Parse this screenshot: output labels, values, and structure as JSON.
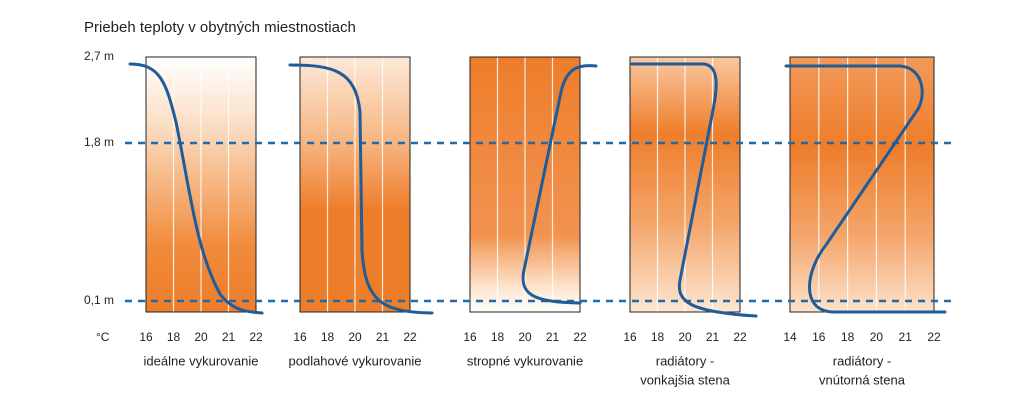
{
  "title": "Priebeh teploty v obytných miestnostiach",
  "height_labels": [
    "2,7 m",
    "1,8 m",
    "0,1 m"
  ],
  "unit": "°C",
  "panels": [
    {
      "ticks": [
        "16",
        "18",
        "20",
        "21",
        "22"
      ],
      "caption": [
        "ideálne vykurovanie"
      ]
    },
    {
      "ticks": [
        "16",
        "18",
        "20",
        "21",
        "22"
      ],
      "caption": [
        "podlahové vykurovanie"
      ]
    },
    {
      "ticks": [
        "16",
        "18",
        "20",
        "21",
        "22"
      ],
      "caption": [
        "stropné vykurovanie"
      ]
    },
    {
      "ticks": [
        "16",
        "18",
        "20",
        "21",
        "22"
      ],
      "caption": [
        "radiátory -",
        "vonkajšia stena"
      ]
    },
    {
      "ticks": [
        "14",
        "16",
        "18",
        "20",
        "21",
        "22"
      ],
      "caption": [
        "radiátory -",
        "vnútorná stena"
      ]
    }
  ]
}
